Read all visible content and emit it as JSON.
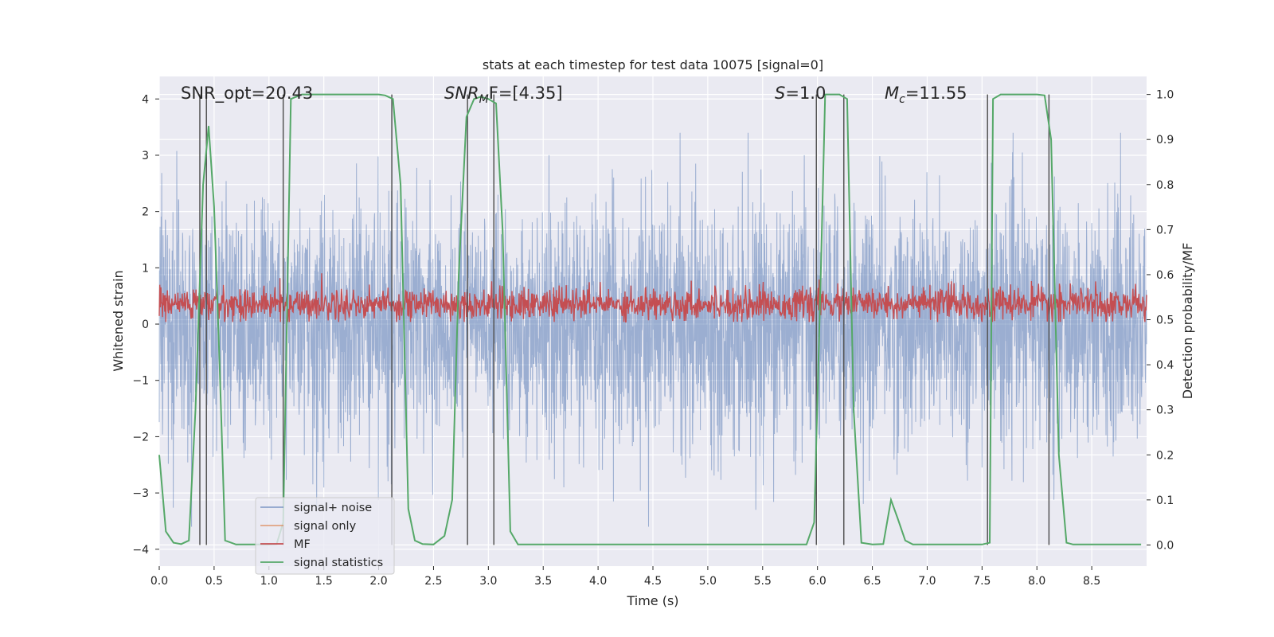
{
  "chart_data": {
    "type": "line",
    "title": "stats at each timestep for test data 10075 [signal=0]",
    "xlabel": "Time (s)",
    "ylabel_left": "Whitened strain",
    "ylabel_right": "Detection probability/MF",
    "xlim": [
      0.0,
      9.0
    ],
    "ylim_left": [
      -4.3,
      4.4
    ],
    "ylim_right": [
      -0.047,
      1.04
    ],
    "x_ticks": [
      0.0,
      0.5,
      1.0,
      1.5,
      2.0,
      2.5,
      3.0,
      3.5,
      4.0,
      4.5,
      5.0,
      5.5,
      6.0,
      6.5,
      7.0,
      7.5,
      8.0,
      8.5
    ],
    "x_tick_labels": [
      "0.0",
      "0.5",
      "1.0",
      "1.5",
      "2.0",
      "2.5",
      "3.0",
      "3.5",
      "4.0",
      "4.5",
      "5.0",
      "5.5",
      "6.0",
      "6.5",
      "7.0",
      "7.5",
      "8.0",
      "8.5"
    ],
    "y_left_ticks": [
      -4,
      -3,
      -2,
      -1,
      0,
      1,
      2,
      3,
      4
    ],
    "y_left_tick_labels": [
      "−4",
      "−3",
      "−2",
      "−1",
      "0",
      "1",
      "2",
      "3",
      "4"
    ],
    "y_right_ticks": [
      0.0,
      0.1,
      0.2,
      0.3,
      0.4,
      0.5,
      0.6,
      0.7,
      0.8,
      0.9,
      1.0
    ],
    "y_right_tick_labels": [
      "0.0",
      "0.1",
      "0.2",
      "0.3",
      "0.4",
      "0.5",
      "0.6",
      "0.7",
      "0.8",
      "0.9",
      "1.0"
    ],
    "annotations": {
      "snr_opt": "SNR_opt=20.43",
      "snr_mf_prefix": "SNR",
      "snr_mf_sub": "M",
      "snr_mf_suffix": "F=[4.35]",
      "s_symbol": "S",
      "s_value": "=1.0",
      "mc_symbol": "M",
      "mc_sub": "c",
      "mc_value": "=11.55"
    },
    "series": [
      {
        "name": "signal+ noise",
        "color": "#4c72b0",
        "opacity": 0.5,
        "description": "whitened noisy strain, roughly N(0,0.8) with spikes to about ±3.5"
      },
      {
        "name": "signal only",
        "color": "#dd8452",
        "values": "zero throughout"
      },
      {
        "name": "MF",
        "color": "#c44e52",
        "axis": "right",
        "description": "matched filter output centered near 0.53 (right axis), range about 0.49–0.61"
      },
      {
        "name": "signal statistics",
        "color": "#55a868",
        "axis": "right",
        "x": [
          0.0,
          0.06,
          0.13,
          0.2,
          0.27,
          0.33,
          0.4,
          0.45,
          0.5,
          0.55,
          0.6,
          0.7,
          0.8,
          0.9,
          1.0,
          1.07,
          1.13,
          1.2,
          1.3,
          1.5,
          1.8,
          2.0,
          2.06,
          2.13,
          2.2,
          2.27,
          2.33,
          2.4,
          2.5,
          2.6,
          2.67,
          2.73,
          2.8,
          2.87,
          2.93,
          3.0,
          3.07,
          3.13,
          3.2,
          3.27,
          3.33,
          3.5,
          4.0,
          4.5,
          5.0,
          5.5,
          5.9,
          5.97,
          6.03,
          6.07,
          6.13,
          6.2,
          6.27,
          6.33,
          6.4,
          6.5,
          6.6,
          6.67,
          6.73,
          6.8,
          6.87,
          6.93,
          7.0,
          7.5,
          7.57,
          7.6,
          7.67,
          7.73,
          7.8,
          8.0,
          8.07,
          8.13,
          8.2,
          8.27,
          8.33,
          8.4,
          8.6,
          8.8,
          8.95
        ],
        "values": [
          0.2,
          0.03,
          0.005,
          0.002,
          0.01,
          0.3,
          0.8,
          0.93,
          0.75,
          0.4,
          0.01,
          0.001,
          0.001,
          0.001,
          0.001,
          0.002,
          0.05,
          0.99,
          1.0,
          1.0,
          1.0,
          1.0,
          0.998,
          0.99,
          0.8,
          0.08,
          0.01,
          0.002,
          0.001,
          0.02,
          0.1,
          0.6,
          0.95,
          0.99,
          0.995,
          0.99,
          0.98,
          0.7,
          0.03,
          0.001,
          0.001,
          0.001,
          0.001,
          0.001,
          0.001,
          0.001,
          0.001,
          0.05,
          0.6,
          1.0,
          1.0,
          1.0,
          0.99,
          0.3,
          0.005,
          0.001,
          0.002,
          0.1,
          0.06,
          0.01,
          0.001,
          0.001,
          0.001,
          0.001,
          0.005,
          0.99,
          1.0,
          1.0,
          1.0,
          1.0,
          0.998,
          0.9,
          0.2,
          0.005,
          0.001,
          0.001,
          0.001,
          0.001,
          0.001
        ]
      }
    ],
    "vertical_lines_x": [
      0.37,
      0.43,
      1.13,
      2.12,
      2.81,
      3.05,
      5.99,
      6.24,
      7.55,
      8.11
    ],
    "legend": {
      "placement": "lower-left",
      "entries": [
        "signal+ noise",
        "signal only",
        "MF",
        "signal statistics"
      ]
    },
    "colors": {
      "axes_bg": "#eaeaf2",
      "grid": "#ffffff",
      "noise": "#4c72b0",
      "signal_only": "#dd8452",
      "mf": "#c44e52",
      "stats": "#55a868",
      "vline": "#555555"
    }
  }
}
